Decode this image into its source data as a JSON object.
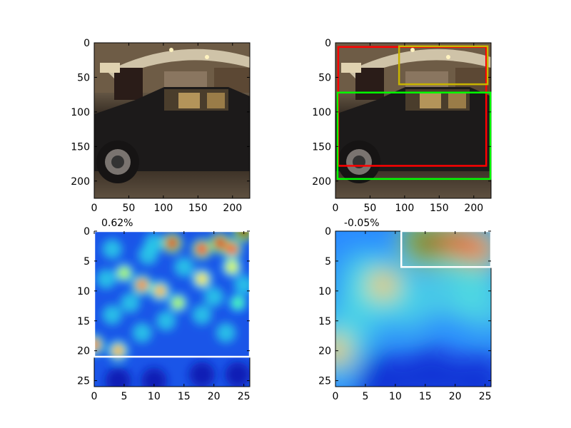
{
  "chart_data": [
    {
      "type": "image",
      "panel": "top-left",
      "content": "photo of dark sedan parked in front of lit storefront at night",
      "xlim": [
        0,
        225
      ],
      "ylim": [
        225,
        0
      ],
      "xticks": [
        0,
        50,
        100,
        150,
        200
      ],
      "yticks": [
        0,
        50,
        100,
        150,
        200
      ]
    },
    {
      "type": "image",
      "panel": "top-right",
      "content": "same photo with bounding boxes",
      "xlim": [
        0,
        225
      ],
      "ylim": [
        225,
        0
      ],
      "xticks": [
        0,
        50,
        100,
        150,
        200
      ],
      "yticks": [
        0,
        50,
        100,
        150,
        200
      ],
      "boxes": [
        {
          "color": "#ff0000",
          "x0": 4,
          "y0": 6,
          "x1": 218,
          "y1": 178
        },
        {
          "color": "#c8b400",
          "x0": 92,
          "y0": 5,
          "x1": 220,
          "y1": 60
        },
        {
          "color": "#00ff00",
          "x0": 3,
          "y0": 72,
          "x1": 224,
          "y1": 197
        }
      ]
    },
    {
      "type": "heatmap",
      "panel": "bottom-left",
      "title": "0.62%",
      "xlim": [
        0,
        26
      ],
      "ylim": [
        26,
        0
      ],
      "xticks": [
        0,
        5,
        10,
        15,
        20,
        25
      ],
      "yticks": [
        0,
        5,
        10,
        15,
        20,
        25
      ],
      "colormap": "jet",
      "box": {
        "color": "#ffffff",
        "x0": 0,
        "y0": 0,
        "x1": 26,
        "y1": 21
      },
      "hotspots": [
        {
          "x": 13,
          "y": 2,
          "v": 0.9
        },
        {
          "x": 18,
          "y": 3,
          "v": 0.85
        },
        {
          "x": 23,
          "y": 3,
          "v": 0.8
        },
        {
          "x": 25,
          "y": 0,
          "v": 1.0
        },
        {
          "x": 21,
          "y": 2,
          "v": 0.9
        },
        {
          "x": 8,
          "y": 9,
          "v": 0.75
        },
        {
          "x": 11,
          "y": 10,
          "v": 0.7
        },
        {
          "x": 18,
          "y": 8,
          "v": 0.65
        },
        {
          "x": 23,
          "y": 6,
          "v": 0.6
        },
        {
          "x": 5,
          "y": 7,
          "v": 0.55
        },
        {
          "x": 0,
          "y": 19,
          "v": 0.75
        },
        {
          "x": 4,
          "y": 20,
          "v": 0.7
        },
        {
          "x": 14,
          "y": 12,
          "v": 0.55
        },
        {
          "x": 24,
          "y": 12,
          "v": 0.45
        }
      ]
    },
    {
      "type": "heatmap",
      "panel": "bottom-right",
      "title": "-0.05%",
      "xlim": [
        0,
        26
      ],
      "ylim": [
        26,
        0
      ],
      "xticks": [
        0,
        5,
        10,
        15,
        20,
        25
      ],
      "yticks": [
        0,
        5,
        10,
        15,
        20,
        25
      ],
      "colormap": "jet",
      "box": {
        "color": "#ffffff",
        "x0": 11,
        "y0": 0,
        "x1": 26,
        "y1": 6
      },
      "hotspots": [
        {
          "x": 15,
          "y": 2,
          "v": 1.0
        },
        {
          "x": 20,
          "y": 2,
          "v": 0.9
        },
        {
          "x": 24,
          "y": 3,
          "v": 0.8
        },
        {
          "x": 8,
          "y": 9,
          "v": 0.7
        },
        {
          "x": 0,
          "y": 20,
          "v": 0.7
        }
      ]
    }
  ]
}
